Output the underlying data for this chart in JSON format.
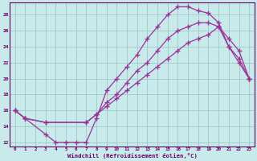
{
  "xlabel": "Windchill (Refroidissement éolien,°C)",
  "bg_color": "#c8eaea",
  "line_color": "#993399",
  "grid_color": "#a0c8c8",
  "xlim": [
    -0.5,
    23.5
  ],
  "ylim": [
    11.5,
    29.5
  ],
  "yticks": [
    12,
    14,
    16,
    18,
    20,
    22,
    24,
    26,
    28
  ],
  "xticks": [
    0,
    1,
    2,
    3,
    4,
    5,
    6,
    7,
    8,
    9,
    10,
    11,
    12,
    13,
    14,
    15,
    16,
    17,
    18,
    19,
    20,
    21,
    22,
    23
  ],
  "line1_x": [
    0,
    1,
    3,
    4,
    5,
    6,
    7,
    8,
    9,
    10,
    11,
    12,
    13,
    14,
    15,
    16,
    17,
    18,
    19,
    20,
    21,
    22,
    23
  ],
  "line1_y": [
    16.0,
    15.0,
    13.0,
    12.0,
    12.0,
    12.0,
    12.0,
    15.0,
    18.5,
    20.0,
    21.5,
    23.0,
    25.0,
    26.5,
    28.0,
    29.0,
    29.0,
    28.5,
    28.2,
    27.0,
    24.0,
    22.0,
    20.0
  ],
  "line2_x": [
    0,
    1,
    3,
    7,
    8,
    9,
    10,
    11,
    12,
    13,
    14,
    15,
    16,
    17,
    18,
    19,
    20,
    21,
    22,
    23
  ],
  "line2_y": [
    16.0,
    15.0,
    14.5,
    14.5,
    15.5,
    17.0,
    18.0,
    19.5,
    21.0,
    22.0,
    23.5,
    25.0,
    26.0,
    26.5,
    27.0,
    27.0,
    26.5,
    24.0,
    22.5,
    20.0
  ],
  "line3_x": [
    0,
    1,
    3,
    7,
    8,
    9,
    10,
    11,
    12,
    13,
    14,
    15,
    16,
    17,
    18,
    19,
    20,
    21,
    22,
    23
  ],
  "line3_y": [
    16.0,
    15.0,
    14.5,
    14.5,
    15.5,
    16.5,
    17.5,
    18.5,
    19.5,
    20.5,
    21.5,
    22.5,
    23.5,
    24.5,
    25.0,
    25.5,
    26.5,
    25.0,
    23.5,
    20.0
  ]
}
